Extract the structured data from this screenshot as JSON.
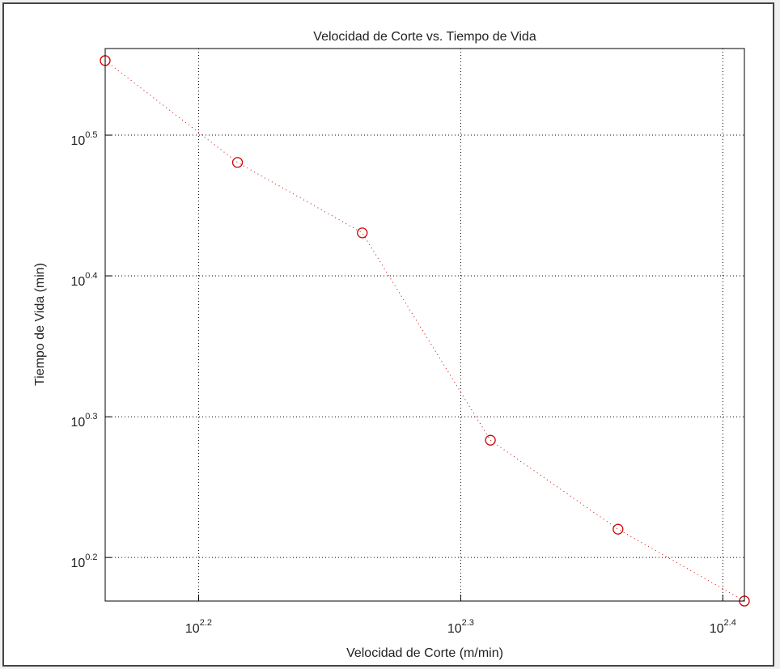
{
  "chart_data": {
    "type": "line",
    "scale": "log",
    "title": "Velocidad de Corte vs. Tiempo de Vida",
    "x_label": "Velocidad de Corte (m/min)",
    "y_label": "Tiempo de Vida (min)",
    "x": [
      146.0,
      164.0,
      183.0,
      204.8,
      229.1,
      256.0
    ],
    "series": [
      {
        "color": "#cc0000",
        "values": [
          3.572,
          3.024,
          2.695,
          1.92,
          1.66,
          1.476
        ]
      }
    ],
    "xlim": [
      146.0,
      256.0
    ],
    "ylim": [
      1.476,
      3.643
    ],
    "xticks": [
      {
        "value": 158.489,
        "label": "10",
        "sup": "2.2"
      },
      {
        "value": 199.526,
        "label": "10",
        "sup": "2.3"
      },
      {
        "value": 251.189,
        "label": "10",
        "sup": "2.4"
      }
    ],
    "yticks": [
      {
        "value": 1.585,
        "label": "10",
        "sup": "0.2"
      },
      {
        "value": 1.995,
        "label": "10",
        "sup": "0.3"
      },
      {
        "value": 2.512,
        "label": "10",
        "sup": "0.4"
      },
      {
        "value": 3.162,
        "label": "10",
        "sup": "0.5"
      }
    ],
    "grid": true
  }
}
